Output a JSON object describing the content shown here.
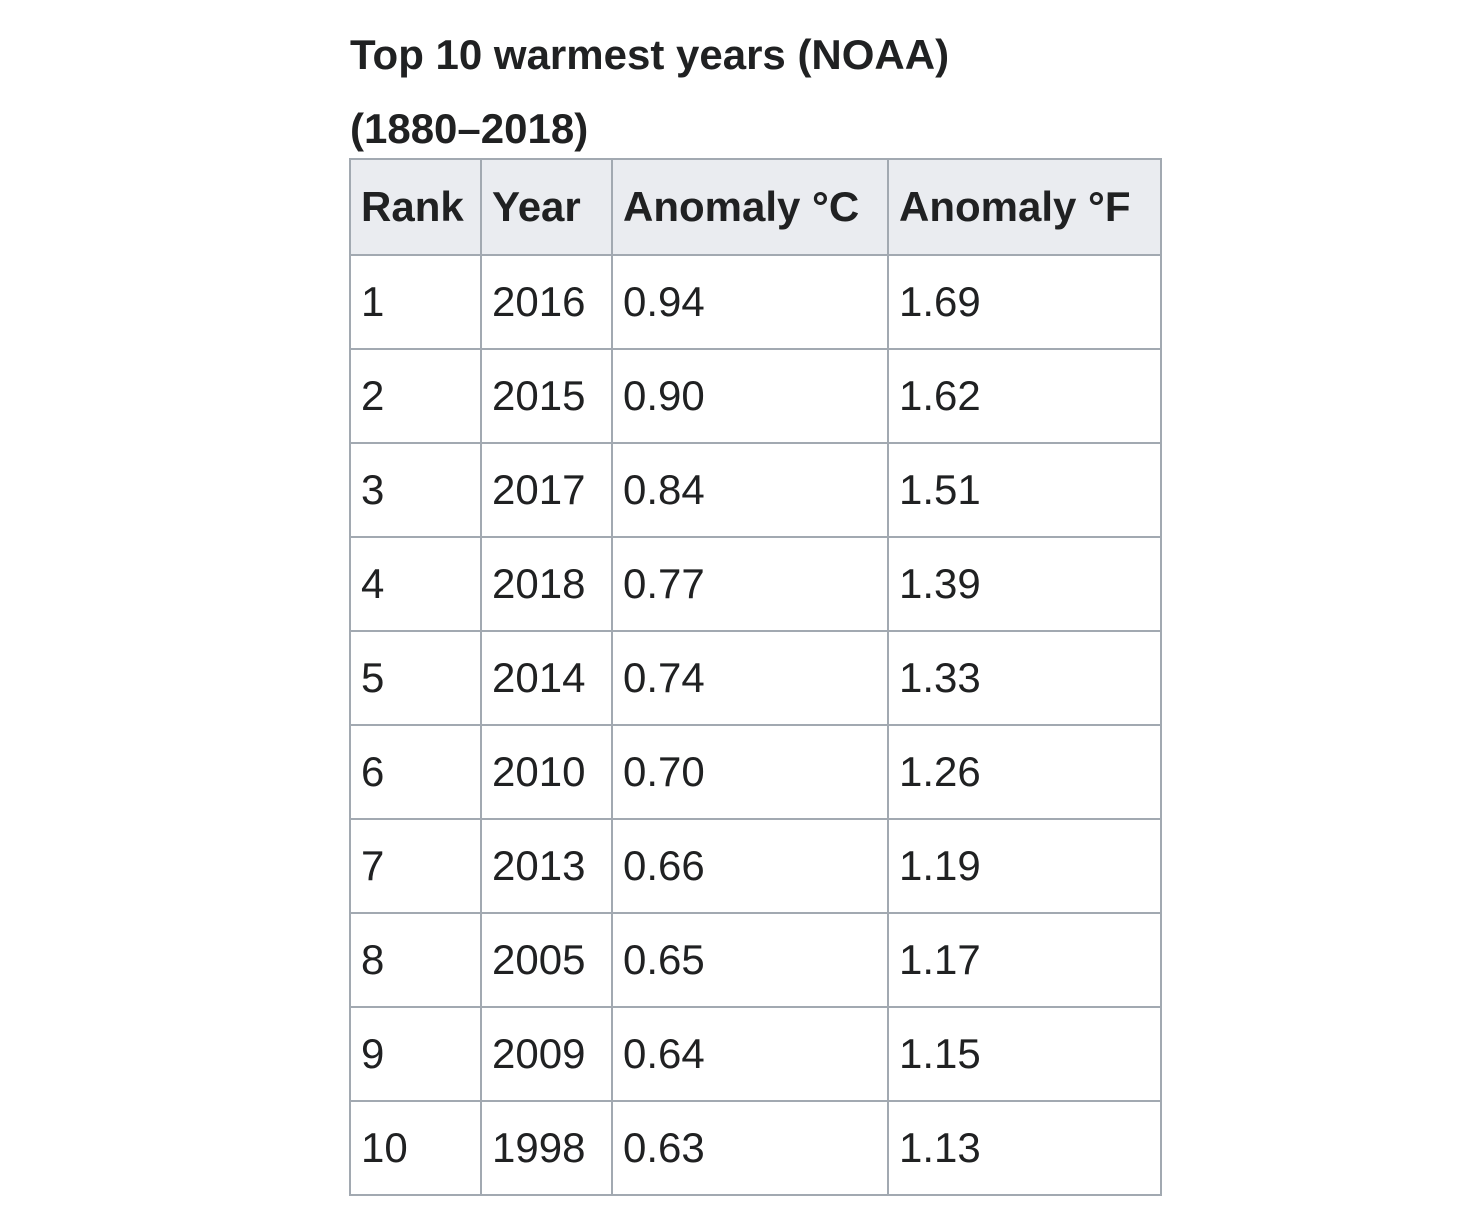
{
  "caption": {
    "line1": "Top 10 warmest years (NOAA)",
    "line2": "(1880–2018)"
  },
  "table": {
    "headers": [
      "Rank",
      "Year",
      "Anomaly °C",
      "Anomaly °F"
    ],
    "rows": [
      [
        "1",
        "2016",
        "0.94",
        "1.69"
      ],
      [
        "2",
        "2015",
        "0.90",
        "1.62"
      ],
      [
        "3",
        "2017",
        "0.84",
        "1.51"
      ],
      [
        "4",
        "2018",
        "0.77",
        "1.39"
      ],
      [
        "5",
        "2014",
        "0.74",
        "1.33"
      ],
      [
        "6",
        "2010",
        "0.70",
        "1.26"
      ],
      [
        "7",
        "2013",
        "0.66",
        "1.19"
      ],
      [
        "8",
        "2005",
        "0.65",
        "1.17"
      ],
      [
        "9",
        "2009",
        "0.64",
        "1.15"
      ],
      [
        "10",
        "1998",
        "0.63",
        "1.13"
      ]
    ]
  },
  "colors": {
    "header_background": "#eaecf0",
    "border": "#a2a9b1",
    "text": "#202122"
  }
}
